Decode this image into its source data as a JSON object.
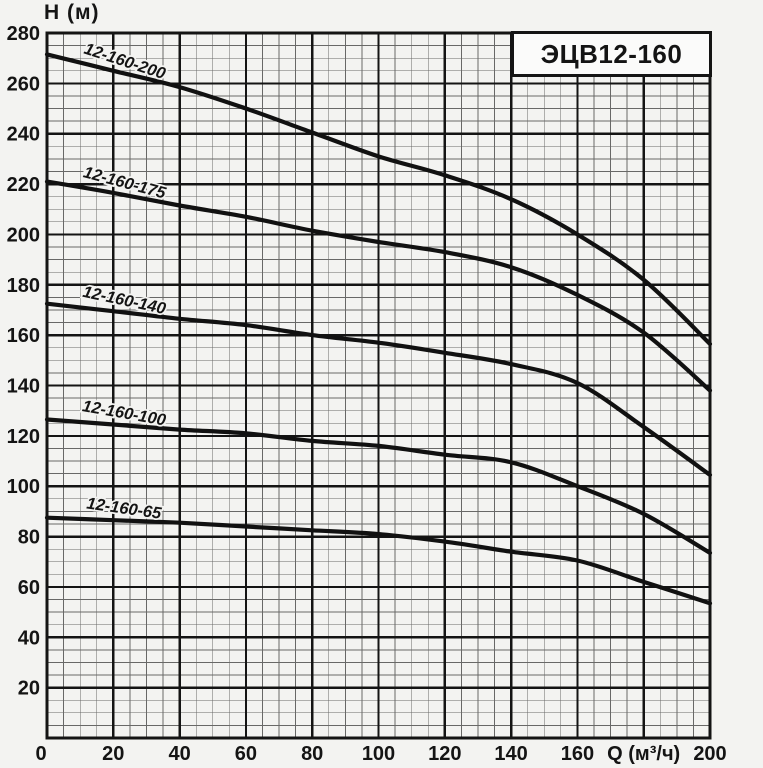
{
  "chart_data": {
    "type": "line",
    "title": "ЭЦВ12-160",
    "xlabel": "Q (м³/ч)",
    "ylabel": "Н (м)",
    "xlim": [
      0,
      200
    ],
    "ylim": [
      0,
      280
    ],
    "grid": {
      "minor_step": 5,
      "major_step": 20,
      "grid_on": true
    },
    "legend_position": "labels-along-curves",
    "x": [
      0,
      20,
      40,
      60,
      80,
      100,
      120,
      140,
      160,
      180,
      200
    ],
    "series": [
      {
        "name": "12-160-200",
        "label_angle": 18,
        "values": [
          271.5,
          265,
          258.5,
          250,
          240.5,
          231,
          223.5,
          214,
          200,
          182,
          156.5
        ]
      },
      {
        "name": "12-160-175",
        "label_angle": 15,
        "values": [
          221,
          216.5,
          211.5,
          207,
          201.5,
          197,
          193,
          187,
          176,
          161,
          138
        ]
      },
      {
        "name": "12-160-140",
        "label_angle": 12,
        "values": [
          172.5,
          169.5,
          166.5,
          164,
          160,
          157,
          153,
          148.5,
          141,
          123.5,
          104.5
        ]
      },
      {
        "name": "12-160-100",
        "label_angle": 10,
        "values": [
          126.5,
          124.5,
          122.5,
          121,
          118,
          116,
          112.5,
          109.5,
          100,
          89,
          73.5
        ]
      },
      {
        "name": "12-160-65",
        "label_angle": 8,
        "values": [
          87.5,
          86.5,
          85.5,
          84,
          82.5,
          81,
          78,
          74,
          70.5,
          62,
          53.5
        ]
      }
    ]
  },
  "axes": {
    "y_tick_labels": [
      "280",
      "260",
      "240",
      "220",
      "200",
      "180",
      "160",
      "140",
      "120",
      "100",
      "80",
      "60",
      "40",
      "20"
    ],
    "x_tick_labels": [
      "0",
      "20",
      "40",
      "60",
      "80",
      "100",
      "120",
      "140",
      "160",
      "Q (м³/ч)",
      "200"
    ]
  },
  "colors": {
    "curve": "#111111",
    "grid_minor": "#454545",
    "grid_major": "#141414",
    "border": "#141414",
    "paper": "#f3f3f1",
    "box_fill": "#fbfbfa",
    "text": "#141414"
  }
}
